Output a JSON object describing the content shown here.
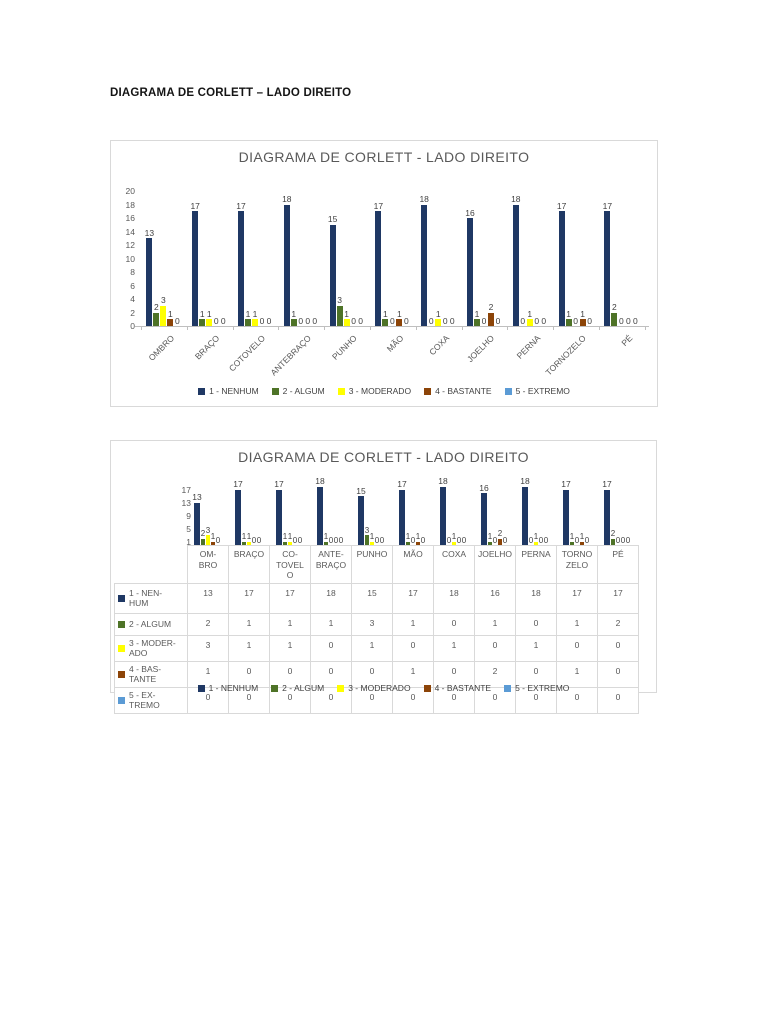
{
  "page": {
    "heading": "DIAGRAMA DE CORLETT – LADO DIREITO"
  },
  "chart_data": [
    {
      "type": "bar",
      "title": "DIAGRAMA DE CORLETT - LADO DIREITO",
      "categories": [
        "OMBRO",
        "BRAÇO",
        "COTOVELO",
        "ANTEBRAÇO",
        "PUNHO",
        "MÃO",
        "COXA",
        "JOELHO",
        "PERNA",
        "TORNOZELO",
        "PÉ"
      ],
      "series": [
        {
          "name": "1 - NENHUM",
          "color": "#1f3864",
          "values": [
            13,
            17,
            17,
            18,
            15,
            17,
            18,
            16,
            18,
            17,
            17
          ]
        },
        {
          "name": "2 - ALGUM",
          "color": "#4e7327",
          "values": [
            2,
            1,
            1,
            1,
            3,
            1,
            0,
            1,
            0,
            1,
            2
          ]
        },
        {
          "name": "3 - MODERADO",
          "color": "#ffff00",
          "values": [
            3,
            1,
            1,
            0,
            1,
            0,
            1,
            0,
            1,
            0,
            0
          ]
        },
        {
          "name": "4 - BASTANTE",
          "color": "#8c4408",
          "values": [
            1,
            0,
            0,
            0,
            0,
            1,
            0,
            2,
            0,
            1,
            0
          ]
        },
        {
          "name": "5 - EXTREMO",
          "color": "#5b9bd5",
          "values": [
            0,
            0,
            0,
            0,
            0,
            0,
            0,
            0,
            0,
            0,
            0
          ]
        }
      ],
      "ylim": [
        0,
        20
      ],
      "y_ticks": [
        0,
        2,
        4,
        6,
        8,
        10,
        12,
        14,
        16,
        18,
        20
      ],
      "grid": false,
      "data_labels": true,
      "legend_position": "bottom"
    },
    {
      "type": "bar",
      "title": "DIAGRAMA DE CORLETT - LADO DIREITO",
      "categories": [
        "OM-\nBRO",
        "BRAÇO",
        "CO-\nTOVEL\nO",
        "ANTE-\nBRAÇO",
        "PUNHO",
        "MÃO",
        "COXA",
        "JOELHO",
        "PERNA",
        "TORNO\nZELO",
        "PÉ"
      ],
      "row_labels": [
        "1 - NEN-\nHUM",
        "2 - ALGUM",
        "3 - MODER-\nADO",
        "4 - BAS-\nTANTE",
        "5 - EX-\nTREMO"
      ],
      "series": [
        {
          "name": "1 - NENHUM",
          "color": "#1f3864",
          "values": [
            13,
            17,
            17,
            18,
            15,
            17,
            18,
            16,
            18,
            17,
            17
          ]
        },
        {
          "name": "2 - ALGUM",
          "color": "#4e7327",
          "values": [
            2,
            1,
            1,
            1,
            3,
            1,
            0,
            1,
            0,
            1,
            2
          ]
        },
        {
          "name": "3 - MODERADO",
          "color": "#ffff00",
          "values": [
            3,
            1,
            1,
            0,
            1,
            0,
            1,
            0,
            1,
            0,
            0
          ]
        },
        {
          "name": "4 - BASTANTE",
          "color": "#8c4408",
          "values": [
            1,
            0,
            0,
            0,
            0,
            1,
            0,
            2,
            0,
            1,
            0
          ]
        },
        {
          "name": "5 - EXTREMO",
          "color": "#5b9bd5",
          "values": [
            0,
            0,
            0,
            0,
            0,
            0,
            0,
            0,
            0,
            0,
            0
          ]
        }
      ],
      "ylim": [
        0,
        18
      ],
      "y_ticks": [
        1,
        5,
        9,
        13,
        17
      ],
      "grid": false,
      "data_labels": true,
      "data_table": true,
      "legend_position": "overlay-bottom"
    }
  ]
}
